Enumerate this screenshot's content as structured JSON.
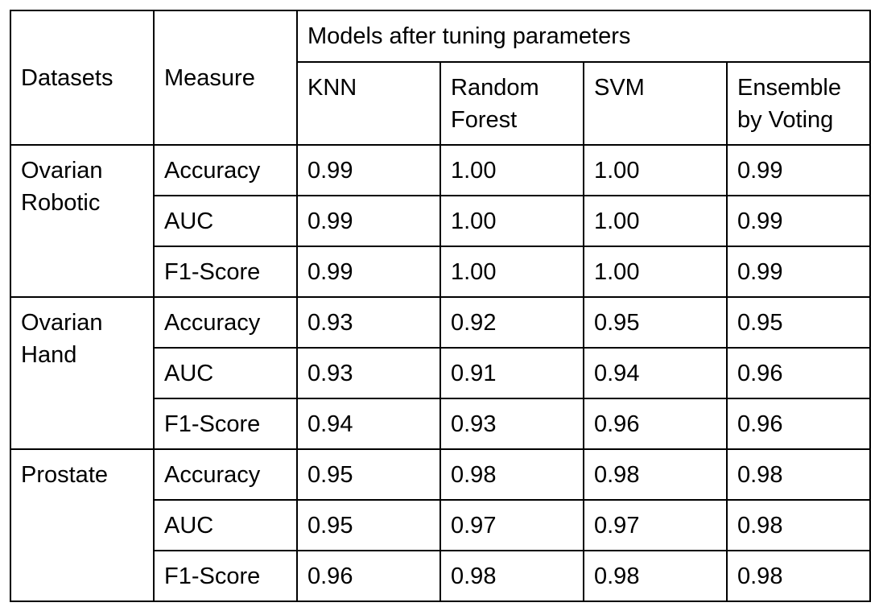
{
  "table": {
    "header": {
      "datasets": "Datasets",
      "measure": "Measure",
      "group": "Models after tuning parameters",
      "models": [
        "KNN",
        "Random Forest",
        "SVM",
        "Ensemble by Voting"
      ]
    },
    "groups": [
      {
        "dataset": "Ovarian Robotic",
        "rows": [
          {
            "measure": "Accuracy",
            "values": [
              "0.99",
              "1.00",
              "1.00",
              "0.99"
            ]
          },
          {
            "measure": "AUC",
            "values": [
              "0.99",
              "1.00",
              "1.00",
              "0.99"
            ]
          },
          {
            "measure": "F1-Score",
            "values": [
              "0.99",
              "1.00",
              "1.00",
              "0.99"
            ]
          }
        ]
      },
      {
        "dataset": "Ovarian Hand",
        "rows": [
          {
            "measure": "Accuracy",
            "values": [
              "0.93",
              "0.92",
              "0.95",
              "0.95"
            ]
          },
          {
            "measure": "AUC",
            "values": [
              "0.93",
              "0.91",
              "0.94",
              "0.96"
            ]
          },
          {
            "measure": "F1-Score",
            "values": [
              "0.94",
              "0.93",
              "0.96",
              "0.96"
            ]
          }
        ]
      },
      {
        "dataset": "Prostate",
        "rows": [
          {
            "measure": "Accuracy",
            "values": [
              "0.95",
              "0.98",
              "0.98",
              "0.98"
            ]
          },
          {
            "measure": "AUC",
            "values": [
              "0.95",
              "0.97",
              "0.97",
              "0.98"
            ]
          },
          {
            "measure": "F1-Score",
            "values": [
              "0.96",
              "0.98",
              "0.98",
              "0.98"
            ]
          }
        ]
      }
    ]
  }
}
